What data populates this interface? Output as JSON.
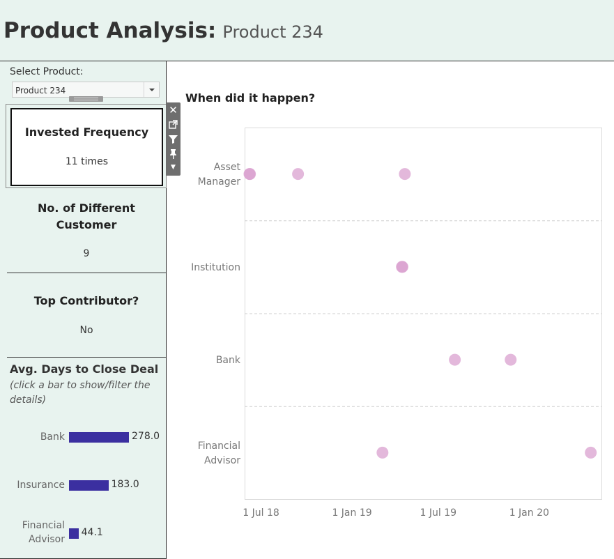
{
  "header": {
    "title": "Product Analysis:",
    "product": "Product 234"
  },
  "sidebar": {
    "select_label": "Select Product:",
    "select_value": "Product 234",
    "invested": {
      "title": "Invested Frequency",
      "value": "11 times"
    },
    "customers": {
      "title_line1": "No. of Different",
      "title_line2": "Customer",
      "value": "9"
    },
    "top_contributor": {
      "title": "Top Contributor?",
      "value": "No"
    },
    "avg_days": {
      "title": "Avg. Days to Close Deal",
      "note": "(click a bar to show/filter the details)",
      "bars": [
        {
          "label_lines": [
            "Bank"
          ],
          "value": 278.0,
          "display": "278.0"
        },
        {
          "label_lines": [
            "Insurance"
          ],
          "value": 183.0,
          "display": "183.0"
        },
        {
          "label_lines": [
            "Financial",
            "Advisor"
          ],
          "value": 44.1,
          "display": "44.1"
        }
      ],
      "bar_color": "#3b2fa0",
      "bar_max": 278.0
    }
  },
  "chart_title": "When did it happen?",
  "chart_data": {
    "type": "scatter",
    "title": "When did it happen?",
    "xlabel": "",
    "ylabel": "",
    "categories": [
      {
        "id": "asset-manager",
        "label_lines": [
          "Asset",
          "Manager"
        ]
      },
      {
        "id": "institution",
        "label_lines": [
          "Institution"
        ]
      },
      {
        "id": "bank",
        "label_lines": [
          "Bank"
        ]
      },
      {
        "id": "financial-advisor",
        "label_lines": [
          "Financial",
          "Advisor"
        ]
      }
    ],
    "x_ticks": [
      {
        "date": "2018-07-01",
        "label": "1 Jul 18"
      },
      {
        "date": "2019-01-01",
        "label": "1 Jan 19"
      },
      {
        "date": "2019-07-01",
        "label": "1 Jul 19"
      },
      {
        "date": "2020-01-01",
        "label": "1 Jan 20"
      }
    ],
    "xlim": [
      "2018-06-22",
      "2020-06-26"
    ],
    "points": [
      {
        "category": "Asset Manager",
        "date": "2018-07-02"
      },
      {
        "category": "Asset Manager",
        "date": "2018-07-03"
      },
      {
        "category": "Asset Manager",
        "date": "2018-10-10"
      },
      {
        "category": "Asset Manager",
        "date": "2019-05-18"
      },
      {
        "category": "Institution",
        "date": "2019-05-12"
      },
      {
        "category": "Institution",
        "date": "2019-05-13"
      },
      {
        "category": "Bank",
        "date": "2019-08-29"
      },
      {
        "category": "Bank",
        "date": "2019-12-22"
      },
      {
        "category": "Financial Advisor",
        "date": "2019-04-02"
      },
      {
        "category": "Financial Advisor",
        "date": "2020-06-04"
      }
    ],
    "point_color": "#d9a0cf",
    "grid": "horizontal-dashed"
  }
}
